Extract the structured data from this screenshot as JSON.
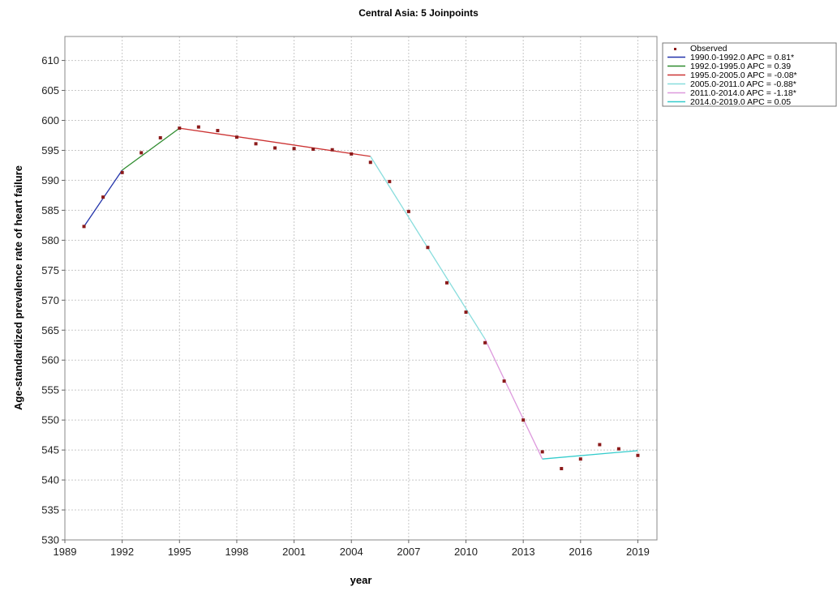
{
  "chart_data": {
    "type": "line",
    "title": "Central Asia: 5 Joinpoints",
    "xlabel": "year",
    "ylabel": "Age-standardized prevalence rate of heart failure",
    "xlim": [
      1989,
      2020
    ],
    "ylim": [
      530,
      614
    ],
    "x_ticks": [
      1989,
      1992,
      1995,
      1998,
      2001,
      2004,
      2007,
      2010,
      2013,
      2016,
      2019
    ],
    "y_ticks": [
      530,
      535,
      540,
      545,
      550,
      555,
      560,
      565,
      570,
      575,
      580,
      585,
      590,
      595,
      600,
      605,
      610
    ],
    "grid": true,
    "legend_position": "outside-top-right",
    "observed": {
      "name": "Observed",
      "color": "#8b1a1a",
      "x": [
        1990,
        1991,
        1992,
        1993,
        1994,
        1995,
        1996,
        1997,
        1998,
        1999,
        2000,
        2001,
        2002,
        2003,
        2004,
        2005,
        2006,
        2007,
        2008,
        2009,
        2010,
        2011,
        2012,
        2013,
        2014,
        2015,
        2016,
        2017,
        2018,
        2019
      ],
      "y": [
        582.3,
        587.2,
        591.3,
        594.6,
        597.1,
        598.7,
        598.9,
        598.3,
        597.2,
        596.1,
        595.4,
        595.3,
        595.2,
        595.1,
        594.4,
        593.0,
        589.8,
        584.8,
        578.8,
        572.9,
        568.0,
        562.9,
        556.5,
        550.0,
        544.7,
        541.9,
        543.5,
        545.9,
        545.2,
        544.1
      ]
    },
    "series": [
      {
        "name": "1990.0-1992.0 APC =  0.81*",
        "color": "#2233aa",
        "x": [
          1990,
          1992
        ],
        "y": [
          582.3,
          591.7
        ]
      },
      {
        "name": "1992.0-1995.0 APC =  0.39",
        "color": "#2e8b2e",
        "x": [
          1992,
          1995
        ],
        "y": [
          591.7,
          598.7
        ]
      },
      {
        "name": "1995.0-2005.0 APC = -0.08*",
        "color": "#cc3333",
        "x": [
          1995,
          2005
        ],
        "y": [
          598.7,
          594.0
        ]
      },
      {
        "name": "2005.0-2011.0 APC = -0.88*",
        "color": "#88dddd",
        "x": [
          2005,
          2011
        ],
        "y": [
          594.0,
          563.5
        ]
      },
      {
        "name": "2011.0-2014.0 APC = -1.18*",
        "color": "#dd99dd",
        "x": [
          2011,
          2014
        ],
        "y": [
          563.5,
          543.5
        ]
      },
      {
        "name": "2014.0-2019.0 APC =  0.05",
        "color": "#33cccc",
        "x": [
          2014,
          2019
        ],
        "y": [
          543.5,
          544.9
        ]
      }
    ]
  }
}
